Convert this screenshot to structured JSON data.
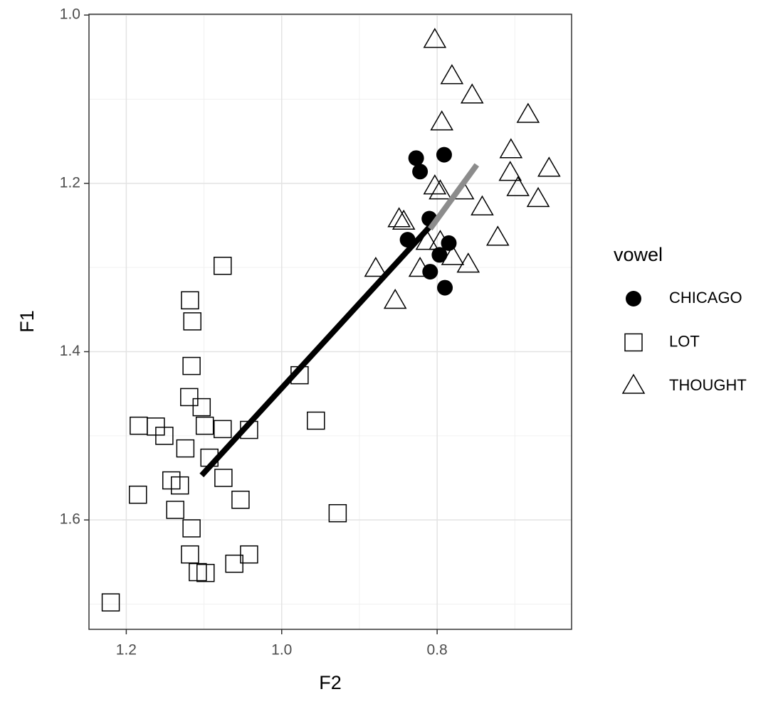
{
  "chart_data": {
    "type": "scatter",
    "xlabel": "F2",
    "ylabel": "F1",
    "x_reversed": true,
    "y_reversed": true,
    "xlim": [
      0.627,
      1.248
    ],
    "ylim": [
      0.999,
      1.73
    ],
    "xticks": [
      1.2,
      {
        "value": 1,
        "label": "1.0"
      },
      0.8
    ],
    "yticks": [
      {
        "value": 1,
        "label": "1.0"
      },
      1.2,
      1.4,
      1.6
    ],
    "minor_xticks": [
      1.1,
      0.9,
      0.7
    ],
    "minor_yticks": [
      1.1,
      1.3,
      1.5,
      1.7
    ],
    "grid": true,
    "legend_title": "vowel",
    "legend_position": "right",
    "series": [
      {
        "name": "CHICAGO",
        "shape": "circle",
        "color": "#000000",
        "x": [
          0.827,
          0.822,
          0.791,
          0.81,
          0.838,
          0.809,
          0.797,
          0.785,
          0.79
        ],
        "y": [
          1.17,
          1.186,
          1.166,
          1.242,
          1.267,
          1.305,
          1.285,
          1.271,
          1.324
        ]
      },
      {
        "name": "LOT",
        "shape": "square",
        "color": "#000000",
        "x": [
          1.076,
          1.118,
          1.115,
          1.116,
          1.119,
          1.103,
          1.099,
          1.076,
          1.042,
          1.184,
          1.162,
          1.151,
          1.124,
          1.093,
          1.142,
          1.131,
          1.075,
          1.185,
          1.137,
          1.053,
          1.116,
          1.118,
          1.042,
          1.061,
          1.108,
          1.098,
          1.22,
          0.977,
          0.956,
          0.928
        ],
        "y": [
          1.298,
          1.339,
          1.364,
          1.417,
          1.454,
          1.466,
          1.488,
          1.492,
          1.493,
          1.488,
          1.489,
          1.5,
          1.515,
          1.526,
          1.553,
          1.559,
          1.55,
          1.57,
          1.588,
          1.576,
          1.61,
          1.641,
          1.641,
          1.652,
          1.662,
          1.663,
          1.698,
          1.428,
          1.482,
          1.592
        ]
      },
      {
        "name": "THOUGHT",
        "shape": "triangle",
        "color": "#000000",
        "x": [
          0.803,
          0.781,
          0.755,
          0.683,
          0.794,
          0.705,
          0.706,
          0.656,
          0.696,
          0.67,
          0.803,
          0.796,
          0.767,
          0.742,
          0.722,
          0.849,
          0.843,
          0.813,
          0.822,
          0.78,
          0.76,
          0.879,
          0.854,
          0.796
        ],
        "y": [
          1.03,
          1.073,
          1.096,
          1.119,
          1.128,
          1.161,
          1.188,
          1.183,
          1.206,
          1.219,
          1.204,
          1.21,
          1.21,
          1.229,
          1.265,
          1.243,
          1.246,
          1.27,
          1.302,
          1.288,
          1.297,
          1.302,
          1.34,
          1.27
        ]
      }
    ],
    "lines": [
      {
        "color": "#000000",
        "x": [
          1.103,
          0.809
        ],
        "y": [
          1.547,
          1.251
        ]
      },
      {
        "color": "#8c8c8c",
        "x": [
          0.809,
          0.749
        ],
        "y": [
          1.254,
          1.178
        ]
      }
    ]
  }
}
